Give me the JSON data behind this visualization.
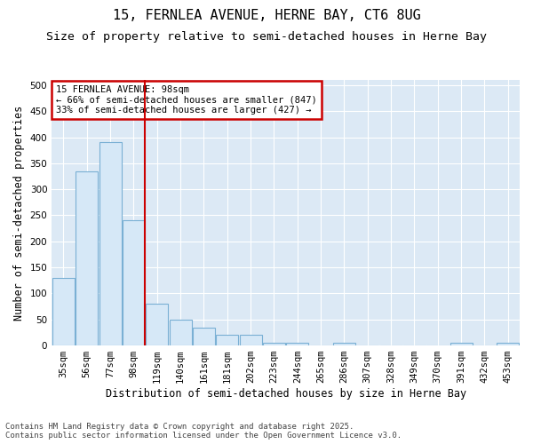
{
  "title_line1": "15, FERNLEA AVENUE, HERNE BAY, CT6 8UG",
  "title_line2": "Size of property relative to semi-detached houses in Herne Bay",
  "xlabel": "Distribution of semi-detached houses by size in Herne Bay",
  "ylabel": "Number of semi-detached properties",
  "categories": [
    "35sqm",
    "56sqm",
    "77sqm",
    "98sqm",
    "119sqm",
    "140sqm",
    "161sqm",
    "181sqm",
    "202sqm",
    "223sqm",
    "244sqm",
    "265sqm",
    "286sqm",
    "307sqm",
    "328sqm",
    "349sqm",
    "370sqm",
    "391sqm",
    "432sqm",
    "453sqm"
  ],
  "values": [
    130,
    335,
    390,
    240,
    80,
    50,
    35,
    20,
    20,
    5,
    5,
    0,
    5,
    0,
    0,
    0,
    0,
    5,
    0,
    5
  ],
  "bar_color": "#d6e8f7",
  "bar_edge_color": "#7ab0d4",
  "vline_index": 3,
  "vline_color": "#cc0000",
  "annotation_line1": "15 FERNLEA AVENUE: 98sqm",
  "annotation_line2": "← 66% of semi-detached houses are smaller (847)",
  "annotation_line3": "33% of semi-detached houses are larger (427) →",
  "annotation_box_color": "#ffffff",
  "annotation_box_edge": "#cc0000",
  "figure_background": "#ffffff",
  "plot_background": "#dce9f5",
  "ylim": [
    0,
    510
  ],
  "yticks": [
    0,
    50,
    100,
    150,
    200,
    250,
    300,
    350,
    400,
    450,
    500
  ],
  "footer_text": "Contains HM Land Registry data © Crown copyright and database right 2025.\nContains public sector information licensed under the Open Government Licence v3.0.",
  "title_fontsize": 11,
  "subtitle_fontsize": 9.5,
  "axis_label_fontsize": 8.5,
  "tick_fontsize": 7.5,
  "annotation_fontsize": 7.5,
  "footer_fontsize": 6.5
}
